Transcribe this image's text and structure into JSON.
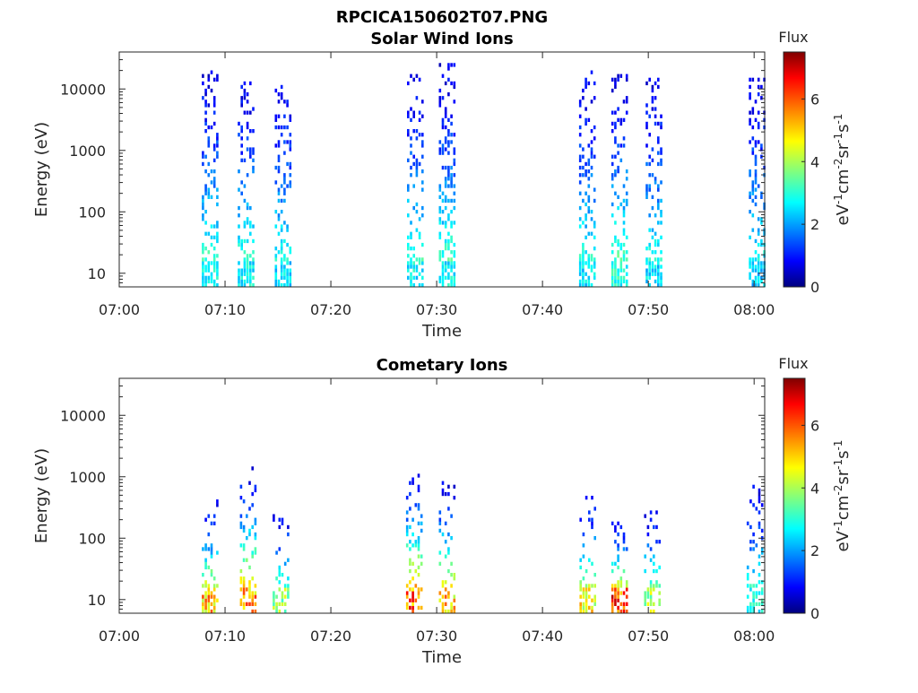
{
  "figure": {
    "title": "RPCICA150602T07.PNG"
  },
  "chart_data": [
    {
      "type": "heatmap",
      "title": "Solar Wind Ions",
      "xlabel": "Time",
      "ylabel": "Energy (eV)",
      "x_ticks": [
        "07:00",
        "07:10",
        "07:20",
        "07:30",
        "07:40",
        "07:50",
        "08:00"
      ],
      "x_tick_minutes": [
        0,
        10,
        20,
        30,
        40,
        50,
        60
      ],
      "xlim_minutes": [
        0,
        61
      ],
      "y_scale": "log",
      "ylim": [
        6,
        40000
      ],
      "y_ticks": [
        "10",
        "100",
        "1000",
        "10000"
      ],
      "y_tick_values": [
        10,
        100,
        1000,
        10000
      ],
      "colorbar": {
        "title": "Flux",
        "label": "eV-1cm-2sr-1s-1",
        "range": [
          0,
          7.5
        ],
        "ticks": [
          "0",
          "2",
          "4",
          "6"
        ],
        "tick_values": [
          0,
          2,
          4,
          6
        ],
        "colormap": "jet"
      },
      "bursts": [
        {
          "center_min": 8.6,
          "width_min": 1.6,
          "low_flux": 3.0,
          "max_energy": 20000,
          "density": 0.33
        },
        {
          "center_min": 12.0,
          "width_min": 1.6,
          "low_flux": 3.0,
          "max_energy": 15000,
          "density": 0.33
        },
        {
          "center_min": 15.4,
          "width_min": 1.4,
          "low_flux": 2.8,
          "max_energy": 15000,
          "density": 0.33
        },
        {
          "center_min": 28.0,
          "width_min": 1.6,
          "low_flux": 3.0,
          "max_energy": 20000,
          "density": 0.33
        },
        {
          "center_min": 31.0,
          "width_min": 1.6,
          "low_flux": 3.0,
          "max_energy": 25000,
          "density": 0.35
        },
        {
          "center_min": 44.2,
          "width_min": 1.5,
          "low_flux": 2.8,
          "max_energy": 20000,
          "density": 0.33
        },
        {
          "center_min": 47.3,
          "width_min": 1.6,
          "low_flux": 3.2,
          "max_energy": 20000,
          "density": 0.35
        },
        {
          "center_min": 50.5,
          "width_min": 1.5,
          "low_flux": 2.8,
          "max_energy": 15000,
          "density": 0.33
        },
        {
          "center_min": 60.2,
          "width_min": 1.4,
          "low_flux": 2.6,
          "max_energy": 15000,
          "density": 0.33
        }
      ]
    },
    {
      "type": "heatmap",
      "title": "Cometary Ions",
      "xlabel": "Time",
      "ylabel": "Energy (eV)",
      "x_ticks": [
        "07:00",
        "07:10",
        "07:20",
        "07:30",
        "07:40",
        "07:50",
        "08:00"
      ],
      "x_tick_minutes": [
        0,
        10,
        20,
        30,
        40,
        50,
        60
      ],
      "xlim_minutes": [
        0,
        61
      ],
      "y_scale": "log",
      "ylim": [
        6,
        40000
      ],
      "y_ticks": [
        "10",
        "100",
        "1000",
        "10000"
      ],
      "y_tick_values": [
        10,
        100,
        1000,
        10000
      ],
      "colorbar": {
        "title": "Flux",
        "label": "eV-1cm-2sr-1s-1",
        "range": [
          0,
          7.5
        ],
        "ticks": [
          "0",
          "2",
          "4",
          "6"
        ],
        "tick_values": [
          0,
          2,
          4,
          6
        ],
        "colormap": "jet"
      },
      "bursts": [
        {
          "center_min": 8.6,
          "width_min": 1.6,
          "low_flux": 5.5,
          "max_energy": 400,
          "density": 0.28
        },
        {
          "center_min": 12.2,
          "width_min": 1.6,
          "low_flux": 5.8,
          "max_energy": 1500,
          "density": 0.28
        },
        {
          "center_min": 15.2,
          "width_min": 1.4,
          "low_flux": 4.2,
          "max_energy": 250,
          "density": 0.25
        },
        {
          "center_min": 27.8,
          "width_min": 1.4,
          "low_flux": 6.2,
          "max_energy": 1200,
          "density": 0.28
        },
        {
          "center_min": 31.0,
          "width_min": 1.6,
          "low_flux": 5.5,
          "max_energy": 1000,
          "density": 0.28
        },
        {
          "center_min": 44.3,
          "width_min": 1.6,
          "low_flux": 5.0,
          "max_energy": 500,
          "density": 0.26
        },
        {
          "center_min": 47.3,
          "width_min": 1.6,
          "low_flux": 6.5,
          "max_energy": 200,
          "density": 0.28
        },
        {
          "center_min": 50.4,
          "width_min": 1.6,
          "low_flux": 4.5,
          "max_energy": 300,
          "density": 0.26
        },
        {
          "center_min": 60.0,
          "width_min": 1.4,
          "low_flux": 3.2,
          "max_energy": 900,
          "density": 0.25
        }
      ]
    }
  ]
}
